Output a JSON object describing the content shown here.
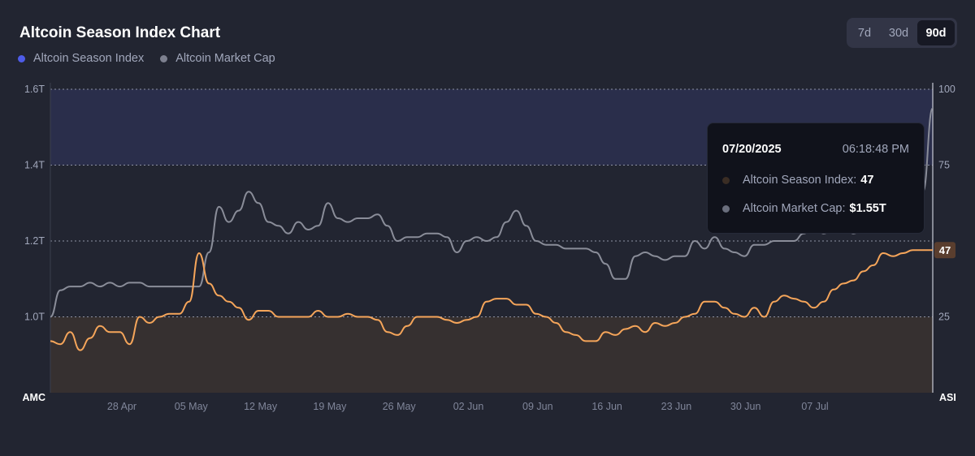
{
  "header": {
    "title": "Altcoin Season Index Chart",
    "legend": [
      {
        "label": "Altcoin Season Index",
        "color": "#4e5ce8"
      },
      {
        "label": "Altcoin Market Cap",
        "color": "#7d808f"
      }
    ],
    "ranges": [
      {
        "label": "7d",
        "active": false
      },
      {
        "label": "30d",
        "active": false
      },
      {
        "label": "90d",
        "active": true
      }
    ]
  },
  "tooltip": {
    "date": "07/20/2025",
    "time": "06:18:48 PM",
    "index_label": "Altcoin Season Index:",
    "index_value": "47",
    "cap_label": "Altcoin Market Cap:",
    "cap_value": "$1.55T",
    "index_dot_color": "#3a2d24",
    "cap_dot_color": "#6a6e7d"
  },
  "chart_data": {
    "type": "line",
    "left_axis": {
      "ticks": [
        "1.6T",
        "1.4T",
        "1.2T",
        "1.0T"
      ],
      "corner_label": "AMC",
      "range": [
        0.8,
        1.6
      ],
      "unit": "T"
    },
    "right_axis": {
      "ticks": [
        "100",
        "75",
        "25"
      ],
      "corner_label": "ASI",
      "range": [
        0,
        100
      ]
    },
    "x_ticks": [
      "28 Apr",
      "05 May",
      "12 May",
      "19 May",
      "26 May",
      "02 Jun",
      "09 Jun",
      "16 Jun",
      "23 Jun",
      "30 Jun",
      "07 Jul"
    ],
    "bands": [
      {
        "axis": "right",
        "from": 75,
        "to": 100,
        "color": "#2c3050"
      },
      {
        "axis": "right",
        "from": 0,
        "to": 25,
        "color": "#3a3230"
      }
    ],
    "current_value_badge": "47",
    "series": [
      {
        "name": "Altcoin Market Cap",
        "axis": "left",
        "color": "#8a8d99",
        "x": [
          0,
          1,
          2,
          3,
          4,
          5,
          6,
          7,
          8,
          9,
          10,
          11,
          12,
          13,
          14,
          15,
          16,
          17,
          18,
          19,
          20,
          21,
          22,
          23,
          24,
          25,
          26,
          27,
          28,
          29,
          30,
          31,
          32,
          33,
          34,
          35,
          36,
          37,
          38,
          39,
          40,
          41,
          42,
          43,
          44,
          45,
          46,
          47,
          48,
          49,
          50,
          51,
          52,
          53,
          54,
          55,
          56,
          57,
          58,
          59,
          60,
          61,
          62,
          63,
          64,
          65,
          66,
          67,
          68,
          69,
          70,
          71,
          72,
          73,
          74,
          75,
          76,
          77,
          78,
          79,
          80,
          81,
          82,
          83,
          84,
          85,
          86,
          87,
          88,
          89
        ],
        "values": [
          1.0,
          1.07,
          1.08,
          1.08,
          1.09,
          1.08,
          1.09,
          1.08,
          1.09,
          1.09,
          1.08,
          1.08,
          1.08,
          1.08,
          1.08,
          1.08,
          1.17,
          1.29,
          1.25,
          1.28,
          1.33,
          1.3,
          1.25,
          1.24,
          1.22,
          1.25,
          1.23,
          1.24,
          1.3,
          1.26,
          1.25,
          1.26,
          1.26,
          1.27,
          1.24,
          1.2,
          1.21,
          1.21,
          1.22,
          1.22,
          1.21,
          1.17,
          1.2,
          1.21,
          1.2,
          1.21,
          1.25,
          1.28,
          1.24,
          1.2,
          1.19,
          1.19,
          1.18,
          1.18,
          1.18,
          1.17,
          1.14,
          1.1,
          1.1,
          1.16,
          1.17,
          1.16,
          1.15,
          1.16,
          1.16,
          1.2,
          1.18,
          1.21,
          1.18,
          1.17,
          1.16,
          1.19,
          1.19,
          1.2,
          1.2,
          1.2,
          1.22,
          1.24,
          1.22,
          1.23,
          1.24,
          1.22,
          1.23,
          1.24,
          1.23,
          1.25,
          1.27,
          1.25,
          1.33,
          1.55
        ]
      },
      {
        "name": "Altcoin Season Index",
        "axis": "right",
        "color": "#f5a55a",
        "x": [
          0,
          1,
          2,
          3,
          4,
          5,
          6,
          7,
          8,
          9,
          10,
          11,
          12,
          13,
          14,
          15,
          16,
          17,
          18,
          19,
          20,
          21,
          22,
          23,
          24,
          25,
          26,
          27,
          28,
          29,
          30,
          31,
          32,
          33,
          34,
          35,
          36,
          37,
          38,
          39,
          40,
          41,
          42,
          43,
          44,
          45,
          46,
          47,
          48,
          49,
          50,
          51,
          52,
          53,
          54,
          55,
          56,
          57,
          58,
          59,
          60,
          61,
          62,
          63,
          64,
          65,
          66,
          67,
          68,
          69,
          70,
          71,
          72,
          73,
          74,
          75,
          76,
          77,
          78,
          79,
          80,
          81,
          82,
          83,
          84,
          85,
          86,
          87,
          88,
          89
        ],
        "values": [
          17,
          16,
          20,
          14,
          18,
          22,
          20,
          20,
          16,
          25,
          23,
          25,
          26,
          26,
          30,
          46,
          36,
          32,
          30,
          28,
          24,
          27,
          27,
          25,
          25,
          25,
          25,
          27,
          25,
          25,
          26,
          25,
          25,
          24,
          20,
          19,
          22,
          25,
          25,
          25,
          24,
          23,
          24,
          25,
          30,
          31,
          31,
          29,
          29,
          26,
          25,
          23,
          20,
          19,
          17,
          17,
          20,
          19,
          21,
          22,
          20,
          23,
          22,
          23,
          25,
          26,
          30,
          30,
          28,
          26,
          25,
          28,
          25,
          30,
          32,
          31,
          30,
          28,
          30,
          34,
          36,
          37,
          40,
          42,
          46,
          45,
          46,
          47,
          47,
          47
        ]
      }
    ]
  }
}
